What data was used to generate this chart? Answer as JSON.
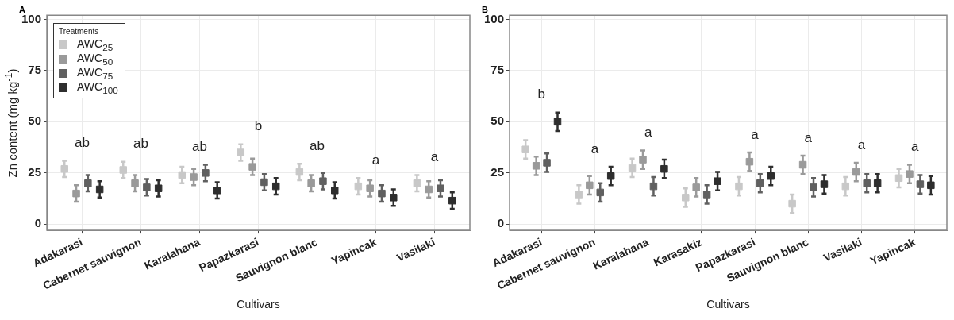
{
  "chart_data": [
    {
      "type": "scatter",
      "title": "A",
      "xlabel": "Cultivars",
      "ylabel": "Zn content (mg kg$^{-1}$)",
      "legend_title": "Treatments",
      "legend": "top left",
      "grid": true,
      "marker": "square",
      "categories": [
        "Adakarasi",
        "Cabernet sauvignon",
        "Karalahana",
        "Papazkarasi",
        "Sauvignon blanc",
        "Yapincak",
        "Vasilaki"
      ],
      "ylim": [
        -3,
        102
      ],
      "yticks": [
        0,
        25,
        50,
        75,
        100
      ],
      "series": [
        {
          "name": "AWC$_{25}$",
          "color": "#c8c8c8",
          "values": [
            27,
            26.5,
            24,
            35,
            25.5,
            18.5,
            20
          ],
          "errors": [
            4,
            4,
            4,
            4,
            4,
            4,
            4
          ]
        },
        {
          "name": "AWC$_{50}$",
          "color": "#9a9a9a",
          "values": [
            15,
            20,
            23,
            28,
            20,
            17.5,
            17
          ],
          "errors": [
            4,
            4,
            4,
            4,
            4,
            4,
            4
          ]
        },
        {
          "name": "AWC$_{75}$",
          "color": "#606060",
          "values": [
            20,
            18,
            25,
            20.5,
            21,
            15,
            17.5
          ],
          "errors": [
            4,
            4,
            4,
            4,
            4,
            4,
            4
          ]
        },
        {
          "name": "AWC$_{100}$",
          "color": "#2e2e2e",
          "values": [
            17,
            17.5,
            16.5,
            18.5,
            16.5,
            13,
            11.5
          ],
          "errors": [
            4,
            4,
            4,
            4,
            4,
            4,
            4
          ]
        }
      ],
      "annotations": [
        "ab",
        "ab",
        "ab",
        "b",
        "ab",
        "a",
        "a"
      ]
    },
    {
      "type": "scatter",
      "title": "B",
      "xlabel": "Cultivars",
      "grid": true,
      "marker": "square",
      "categories": [
        "Adakarasi",
        "Cabernet sauvignon",
        "Karalahana",
        "Karasakiz",
        "Papazkarasi",
        "Sauvignon blanc",
        "Vasilaki",
        "Yapincak"
      ],
      "ylim": [
        -3,
        102
      ],
      "yticks": [
        0,
        25,
        50,
        75,
        100
      ],
      "series": [
        {
          "color": "#c8c8c8",
          "values": [
            36.5,
            14.5,
            27.5,
            13,
            18.5,
            10,
            18.5,
            22.5
          ],
          "errors": [
            4.5,
            4.5,
            4.5,
            4.5,
            4.5,
            4.5,
            4.5,
            4.5
          ]
        },
        {
          "color": "#9a9a9a",
          "values": [
            28.5,
            19,
            31.5,
            18,
            30.5,
            29,
            25.5,
            24.5
          ],
          "errors": [
            4.5,
            4.5,
            4.5,
            4.5,
            4.5,
            4.5,
            4.5,
            4.5
          ]
        },
        {
          "color": "#606060",
          "values": [
            30,
            15.5,
            18.5,
            14.5,
            20,
            18,
            20,
            19.5
          ],
          "errors": [
            4.5,
            4.5,
            4.5,
            4.5,
            4.5,
            4.5,
            4.5,
            4.5
          ]
        },
        {
          "color": "#2e2e2e",
          "values": [
            50,
            23.5,
            27,
            21,
            23.5,
            19.5,
            20,
            19
          ],
          "errors": [
            4.5,
            4.5,
            4.5,
            4.5,
            4.5,
            4.5,
            4.5,
            4.5
          ]
        }
      ],
      "annotations": [
        "b",
        "a",
        "a",
        null,
        "a",
        "a",
        "a",
        "a"
      ]
    }
  ]
}
